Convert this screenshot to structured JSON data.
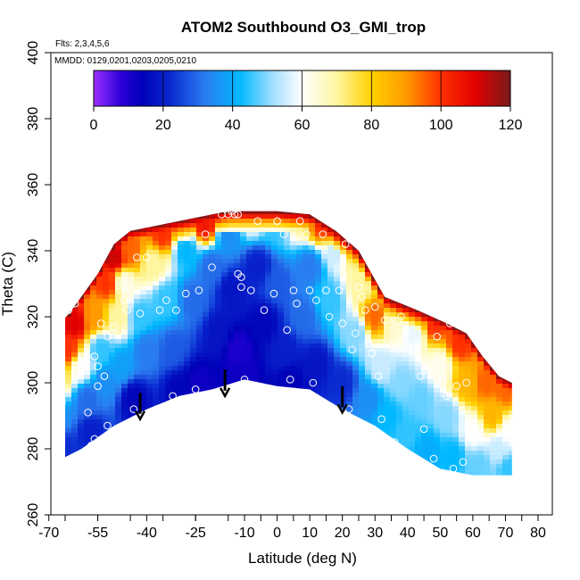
{
  "chart_data": {
    "type": "heatmap",
    "title": "ATOM2 Southbound O3_GMI_trop",
    "flights_label": "Flts: 2,3,4,5,6",
    "dates_label": "MMDD: 0129,0201,0203,0205,0210",
    "xlabel": "Latitude (deg N)",
    "ylabel": "Theta (C)",
    "xlim": [
      -70,
      85
    ],
    "ylim": [
      260,
      400
    ],
    "x_ticks": [
      "-70",
      "-55",
      "-40",
      "-25",
      "-10",
      "0",
      "10",
      "20",
      "30",
      "40",
      "50",
      "60",
      "70",
      "80"
    ],
    "x_tick_values": [
      -70,
      -55,
      -40,
      -25,
      -10,
      0,
      10,
      20,
      30,
      40,
      50,
      60,
      70,
      80
    ],
    "y_ticks": [
      "260",
      "280",
      "300",
      "320",
      "340",
      "360",
      "380",
      "400"
    ],
    "y_tick_values": [
      260,
      280,
      300,
      320,
      340,
      360,
      380,
      400
    ],
    "colorbar": {
      "range": [
        0,
        120
      ],
      "ticks": [
        "0",
        "20",
        "40",
        "60",
        "80",
        "100",
        "120"
      ],
      "tick_values": [
        0,
        20,
        40,
        60,
        80,
        100,
        120
      ]
    },
    "colorscale": [
      {
        "v": 0,
        "c": "#9b30ff"
      },
      {
        "v": 8,
        "c": "#2a00d8"
      },
      {
        "v": 14,
        "c": "#0000b8"
      },
      {
        "v": 22,
        "c": "#0a2ad0"
      },
      {
        "v": 32,
        "c": "#2a7cf0"
      },
      {
        "v": 42,
        "c": "#00b8ff"
      },
      {
        "v": 52,
        "c": "#a8e0ff"
      },
      {
        "v": 60,
        "c": "#ffffff"
      },
      {
        "v": 70,
        "c": "#fff6a0"
      },
      {
        "v": 80,
        "c": "#ffd000"
      },
      {
        "v": 90,
        "c": "#ff9a00"
      },
      {
        "v": 100,
        "c": "#ff3000"
      },
      {
        "v": 110,
        "c": "#e00000"
      },
      {
        "v": 120,
        "c": "#7a1a1a"
      }
    ],
    "top_boundary": [
      {
        "lat": -70,
        "theta": 310
      },
      {
        "lat": -68,
        "theta": 316
      },
      {
        "lat": -63,
        "theta": 322
      },
      {
        "lat": -55,
        "theta": 333
      },
      {
        "lat": -50,
        "theta": 342
      },
      {
        "lat": -45,
        "theta": 346
      },
      {
        "lat": -35,
        "theta": 348
      },
      {
        "lat": -25,
        "theta": 350
      },
      {
        "lat": -15,
        "theta": 352
      },
      {
        "lat": 0,
        "theta": 352
      },
      {
        "lat": 10,
        "theta": 351
      },
      {
        "lat": 18,
        "theta": 346
      },
      {
        "lat": 25,
        "theta": 340
      },
      {
        "lat": 33,
        "theta": 326
      },
      {
        "lat": 43,
        "theta": 322
      },
      {
        "lat": 52,
        "theta": 318
      },
      {
        "lat": 58,
        "theta": 315
      },
      {
        "lat": 63,
        "theta": 308
      },
      {
        "lat": 68,
        "theta": 302
      },
      {
        "lat": 72,
        "theta": 300
      }
    ],
    "bottom_boundary": [
      {
        "lat": -70,
        "theta": 275
      },
      {
        "lat": -60,
        "theta": 280
      },
      {
        "lat": -50,
        "theta": 287
      },
      {
        "lat": -40,
        "theta": 292
      },
      {
        "lat": -30,
        "theta": 296
      },
      {
        "lat": -20,
        "theta": 298
      },
      {
        "lat": -10,
        "theta": 301
      },
      {
        "lat": 0,
        "theta": 299
      },
      {
        "lat": 10,
        "theta": 298
      },
      {
        "lat": 20,
        "theta": 292
      },
      {
        "lat": 30,
        "theta": 287
      },
      {
        "lat": 40,
        "theta": 280
      },
      {
        "lat": 50,
        "theta": 274
      },
      {
        "lat": 60,
        "theta": 272
      },
      {
        "lat": 72,
        "theta": 272
      }
    ],
    "field_points": [
      {
        "lat": -69,
        "theta": 300,
        "o3": 95
      },
      {
        "lat": -67,
        "theta": 290,
        "o3": 35
      },
      {
        "lat": -66,
        "theta": 280,
        "o3": 22
      },
      {
        "lat": -64,
        "theta": 310,
        "o3": 100
      },
      {
        "lat": -62,
        "theta": 318,
        "o3": 110
      },
      {
        "lat": -60,
        "theta": 305,
        "o3": 60
      },
      {
        "lat": -58,
        "theta": 295,
        "o3": 30
      },
      {
        "lat": -57,
        "theta": 285,
        "o3": 20
      },
      {
        "lat": -56,
        "theta": 320,
        "o3": 90
      },
      {
        "lat": -54,
        "theta": 310,
        "o3": 45
      },
      {
        "lat": -53,
        "theta": 300,
        "o3": 35
      },
      {
        "lat": -52,
        "theta": 330,
        "o3": 100
      },
      {
        "lat": -50,
        "theta": 338,
        "o3": 112
      },
      {
        "lat": -49,
        "theta": 320,
        "o3": 70
      },
      {
        "lat": -48,
        "theta": 305,
        "o3": 38
      },
      {
        "lat": -47,
        "theta": 330,
        "o3": 62
      },
      {
        "lat": -45,
        "theta": 340,
        "o3": 95
      },
      {
        "lat": -44,
        "theta": 295,
        "o3": 15
      },
      {
        "lat": -42,
        "theta": 320,
        "o3": 45
      },
      {
        "lat": -40,
        "theta": 310,
        "o3": 32
      },
      {
        "lat": -38,
        "theta": 336,
        "o3": 70
      },
      {
        "lat": -35,
        "theta": 345,
        "o3": 100
      },
      {
        "lat": -34,
        "theta": 325,
        "o3": 45
      },
      {
        "lat": -32,
        "theta": 310,
        "o3": 28
      },
      {
        "lat": -30,
        "theta": 298,
        "o3": 15
      },
      {
        "lat": -28,
        "theta": 340,
        "o3": 42
      },
      {
        "lat": -26,
        "theta": 325,
        "o3": 30
      },
      {
        "lat": -24,
        "theta": 300,
        "o3": 12
      },
      {
        "lat": -22,
        "theta": 348,
        "o3": 105
      },
      {
        "lat": -20,
        "theta": 335,
        "o3": 30
      },
      {
        "lat": -18,
        "theta": 315,
        "o3": 18
      },
      {
        "lat": -15,
        "theta": 345,
        "o3": 35
      },
      {
        "lat": -14,
        "theta": 328,
        "o3": 18
      },
      {
        "lat": -12,
        "theta": 310,
        "o3": 10
      },
      {
        "lat": -10,
        "theta": 302,
        "o3": 12
      },
      {
        "lat": -8,
        "theta": 350,
        "o3": 60
      },
      {
        "lat": -6,
        "theta": 335,
        "o3": 20
      },
      {
        "lat": -4,
        "theta": 318,
        "o3": 15
      },
      {
        "lat": 0,
        "theta": 348,
        "o3": 45
      },
      {
        "lat": 0,
        "theta": 330,
        "o3": 28
      },
      {
        "lat": 2,
        "theta": 310,
        "o3": 20
      },
      {
        "lat": 4,
        "theta": 300,
        "o3": 14
      },
      {
        "lat": 6,
        "theta": 350,
        "o3": 70
      },
      {
        "lat": 8,
        "theta": 320,
        "o3": 30
      },
      {
        "lat": 10,
        "theta": 335,
        "o3": 32
      },
      {
        "lat": 12,
        "theta": 305,
        "o3": 18
      },
      {
        "lat": 14,
        "theta": 348,
        "o3": 100
      },
      {
        "lat": 16,
        "theta": 325,
        "o3": 45
      },
      {
        "lat": 18,
        "theta": 340,
        "o3": 55
      },
      {
        "lat": 20,
        "theta": 300,
        "o3": 22
      },
      {
        "lat": 22,
        "theta": 344,
        "o3": 105
      },
      {
        "lat": 24,
        "theta": 315,
        "o3": 50
      },
      {
        "lat": 26,
        "theta": 330,
        "o3": 70
      },
      {
        "lat": 28,
        "theta": 295,
        "o3": 35
      },
      {
        "lat": 30,
        "theta": 320,
        "o3": 95
      },
      {
        "lat": 32,
        "theta": 305,
        "o3": 55
      },
      {
        "lat": 34,
        "theta": 290,
        "o3": 42
      },
      {
        "lat": 36,
        "theta": 318,
        "o3": 65
      },
      {
        "lat": 38,
        "theta": 300,
        "o3": 50
      },
      {
        "lat": 40,
        "theta": 285,
        "o3": 45
      },
      {
        "lat": 42,
        "theta": 315,
        "o3": 58
      },
      {
        "lat": 44,
        "theta": 295,
        "o3": 48
      },
      {
        "lat": 46,
        "theta": 280,
        "o3": 40
      },
      {
        "lat": 48,
        "theta": 318,
        "o3": 100
      },
      {
        "lat": 50,
        "theta": 305,
        "o3": 62
      },
      {
        "lat": 52,
        "theta": 290,
        "o3": 50
      },
      {
        "lat": 54,
        "theta": 278,
        "o3": 42
      },
      {
        "lat": 56,
        "theta": 312,
        "o3": 100
      },
      {
        "lat": 58,
        "theta": 300,
        "o3": 85
      },
      {
        "lat": 60,
        "theta": 285,
        "o3": 60
      },
      {
        "lat": 62,
        "theta": 275,
        "o3": 48
      },
      {
        "lat": 64,
        "theta": 300,
        "o3": 95
      },
      {
        "lat": 66,
        "theta": 290,
        "o3": 85
      },
      {
        "lat": 68,
        "theta": 280,
        "o3": 55
      },
      {
        "lat": 70,
        "theta": 298,
        "o3": 95
      },
      {
        "lat": 71,
        "theta": 285,
        "o3": 60
      },
      {
        "lat": 71,
        "theta": 274,
        "o3": 45
      }
    ],
    "observations": [
      {
        "lat": -67,
        "theta": 298
      },
      {
        "lat": -66,
        "theta": 294
      },
      {
        "lat": -64,
        "theta": 322
      },
      {
        "lat": -62,
        "theta": 324
      },
      {
        "lat": -58,
        "theta": 291
      },
      {
        "lat": -57,
        "theta": 281
      },
      {
        "lat": -56,
        "theta": 283
      },
      {
        "lat": -56,
        "theta": 308
      },
      {
        "lat": -55,
        "theta": 305
      },
      {
        "lat": -55,
        "theta": 299
      },
      {
        "lat": -54,
        "theta": 318
      },
      {
        "lat": -53,
        "theta": 302
      },
      {
        "lat": -52,
        "theta": 287
      },
      {
        "lat": -52,
        "theta": 314
      },
      {
        "lat": -50,
        "theta": 317
      },
      {
        "lat": -47,
        "theta": 325
      },
      {
        "lat": -46,
        "theta": 322
      },
      {
        "lat": -44,
        "theta": 292
      },
      {
        "lat": -43,
        "theta": 338
      },
      {
        "lat": -42,
        "theta": 321
      },
      {
        "lat": -40,
        "theta": 338
      },
      {
        "lat": -37,
        "theta": 292
      },
      {
        "lat": -36,
        "theta": 322
      },
      {
        "lat": -34,
        "theta": 325
      },
      {
        "lat": -32,
        "theta": 296
      },
      {
        "lat": -31,
        "theta": 322
      },
      {
        "lat": -28,
        "theta": 327
      },
      {
        "lat": -25,
        "theta": 298
      },
      {
        "lat": -24,
        "theta": 328
      },
      {
        "lat": -22,
        "theta": 345
      },
      {
        "lat": -20,
        "theta": 335
      },
      {
        "lat": -17,
        "theta": 351
      },
      {
        "lat": -15,
        "theta": 351
      },
      {
        "lat": -14,
        "theta": 352
      },
      {
        "lat": -13,
        "theta": 351
      },
      {
        "lat": -12,
        "theta": 351
      },
      {
        "lat": -12,
        "theta": 333
      },
      {
        "lat": -11,
        "theta": 332
      },
      {
        "lat": -11,
        "theta": 329
      },
      {
        "lat": -10,
        "theta": 301
      },
      {
        "lat": -8,
        "theta": 328
      },
      {
        "lat": -6,
        "theta": 349
      },
      {
        "lat": -4,
        "theta": 322
      },
      {
        "lat": -1,
        "theta": 327
      },
      {
        "lat": 0,
        "theta": 349
      },
      {
        "lat": 2,
        "theta": 345
      },
      {
        "lat": 3,
        "theta": 316
      },
      {
        "lat": 4,
        "theta": 301
      },
      {
        "lat": 5,
        "theta": 328
      },
      {
        "lat": 6,
        "theta": 324
      },
      {
        "lat": 7,
        "theta": 349
      },
      {
        "lat": 9,
        "theta": 345
      },
      {
        "lat": 10,
        "theta": 328
      },
      {
        "lat": 11,
        "theta": 300
      },
      {
        "lat": 12,
        "theta": 325
      },
      {
        "lat": 14,
        "theta": 345
      },
      {
        "lat": 15,
        "theta": 328
      },
      {
        "lat": 16,
        "theta": 320
      },
      {
        "lat": 17,
        "theta": 349
      },
      {
        "lat": 19,
        "theta": 328
      },
      {
        "lat": 20,
        "theta": 318
      },
      {
        "lat": 21,
        "theta": 342
      },
      {
        "lat": 22,
        "theta": 292
      },
      {
        "lat": 23,
        "theta": 310
      },
      {
        "lat": 24,
        "theta": 315
      },
      {
        "lat": 25,
        "theta": 329
      },
      {
        "lat": 26,
        "theta": 326
      },
      {
        "lat": 27,
        "theta": 322
      },
      {
        "lat": 28,
        "theta": 312
      },
      {
        "lat": 29,
        "theta": 309
      },
      {
        "lat": 30,
        "theta": 323
      },
      {
        "lat": 31,
        "theta": 302
      },
      {
        "lat": 32,
        "theta": 289
      },
      {
        "lat": 33,
        "theta": 319
      },
      {
        "lat": 35,
        "theta": 311
      },
      {
        "lat": 36,
        "theta": 282
      },
      {
        "lat": 38,
        "theta": 320
      },
      {
        "lat": 40,
        "theta": 311
      },
      {
        "lat": 42,
        "theta": 310
      },
      {
        "lat": 44,
        "theta": 302
      },
      {
        "lat": 45,
        "theta": 286
      },
      {
        "lat": 47,
        "theta": 305
      },
      {
        "lat": 48,
        "theta": 277
      },
      {
        "lat": 49,
        "theta": 314
      },
      {
        "lat": 51,
        "theta": 301
      },
      {
        "lat": 52,
        "theta": 296
      },
      {
        "lat": 53,
        "theta": 318
      },
      {
        "lat": 54,
        "theta": 274
      },
      {
        "lat": 55,
        "theta": 299
      },
      {
        "lat": 57,
        "theta": 276
      },
      {
        "lat": 58,
        "theta": 300
      }
    ],
    "arrows": [
      {
        "lat": -42,
        "theta_start": 297,
        "theta_end": 289
      },
      {
        "lat": -16,
        "theta_start": 304,
        "theta_end": 296
      },
      {
        "lat": 20,
        "theta_start": 299,
        "theta_end": 291
      }
    ]
  }
}
